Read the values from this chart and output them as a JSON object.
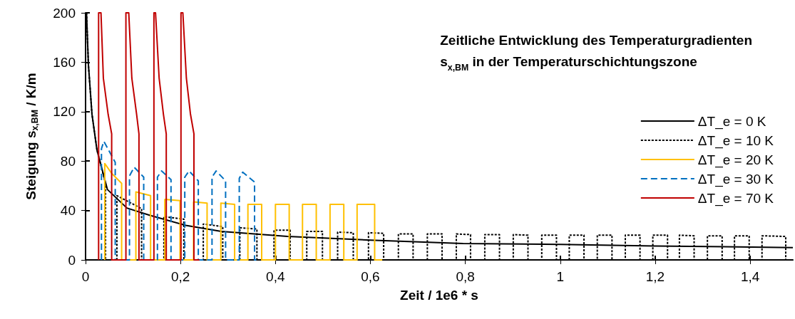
{
  "chart_data": {
    "type": "line",
    "title": "Zeitliche Entwicklung des Temperaturgradienten s$_{x,BM}$ in der Temperaturschichtungszone",
    "xlabel": "Zeit / 1e6 * s",
    "ylabel": "Steigung s$_{x,BM}$ / K/m",
    "xlim": [
      0,
      1.49
    ],
    "xticks": [
      0,
      {
        "value": 0.2,
        "label": "0,2"
      },
      {
        "value": 0.4,
        "label": "0,4"
      },
      {
        "value": 0.6,
        "label": "0,6"
      },
      {
        "value": 0.8,
        "label": "0,8"
      },
      1,
      {
        "value": 1.2,
        "label": "1,2"
      },
      {
        "value": 1.4,
        "label": "1,4"
      }
    ],
    "ylim": [
      0,
      200
    ],
    "yticks": [
      0,
      40,
      80,
      120,
      160,
      200
    ],
    "grid": false,
    "legend": "right",
    "marker": "none",
    "series": [
      {
        "name": "ΔT_e = 0 K",
        "color": "#000000",
        "line_style": "solid",
        "x": [
          0.002,
          0.006,
          0.0135,
          0.024,
          0.046,
          0.087,
          0.136,
          0.211,
          0.286,
          0.425,
          0.6,
          0.795,
          1.0,
          1.2,
          1.49
        ],
        "values": [
          200,
          158,
          118,
          89,
          57,
          42,
          36,
          28,
          23,
          19,
          16,
          13.3,
          12.5,
          11.3,
          10
        ]
      },
      {
        "name": "ΔT_e = 10 K",
        "color": "#000000",
        "line_style": "dotted",
        "x": [
          0.002,
          0.006,
          0.0135,
          0.024,
          0.042,
          0.042,
          0.066,
          0.066,
          0.118,
          0.118,
          0.165,
          0.165,
          0.207,
          0.207,
          0.248,
          0.248,
          0.289,
          0.289,
          0.325,
          0.325,
          0.361,
          0.361,
          0.397,
          0.397,
          0.431,
          0.431,
          0.466,
          0.466,
          0.499,
          0.499,
          0.531,
          0.531,
          0.564,
          0.564,
          0.596,
          0.596,
          0.628,
          0.628,
          0.659,
          0.659,
          0.69,
          0.69,
          0.72,
          0.72,
          0.751,
          0.751,
          0.781,
          0.781,
          0.811,
          0.811,
          0.841,
          0.841,
          0.872,
          0.872,
          0.901,
          0.901,
          0.932,
          0.932,
          0.961,
          0.961,
          0.992,
          0.992,
          1.019,
          1.019,
          1.05,
          1.05,
          1.078,
          1.078,
          1.109,
          1.109,
          1.137,
          1.137,
          1.168,
          1.168,
          1.195,
          1.195,
          1.226,
          1.226,
          1.251,
          1.251,
          1.282,
          1.282,
          1.31,
          1.31,
          1.341,
          1.341,
          1.367,
          1.367,
          1.398,
          1.398,
          1.425,
          1.425,
          1.475,
          1.475,
          1.49
        ],
        "values": [
          200,
          158,
          118,
          89,
          62,
          0,
          0,
          52,
          41.5,
          0,
          0,
          35,
          33,
          0,
          0,
          29,
          27,
          0,
          0,
          26,
          25,
          0,
          0,
          24,
          24,
          0,
          0,
          23,
          23,
          0,
          0,
          22.5,
          22,
          0,
          0,
          22,
          21.5,
          0,
          0,
          21,
          21,
          0,
          0,
          21,
          21,
          0,
          0,
          21,
          20.5,
          0,
          0,
          20.5,
          20.5,
          0,
          0,
          20.5,
          20,
          0,
          0,
          20,
          20,
          0,
          0,
          20,
          20,
          0,
          0,
          20,
          20,
          0,
          0,
          20,
          20,
          0,
          0,
          20,
          20,
          0,
          0,
          20,
          19.5,
          0,
          0,
          19.5,
          19.5,
          0,
          0,
          19.5,
          19.5,
          0,
          0,
          19.5,
          19,
          0,
          0
        ]
      },
      {
        "name": "ΔT_e = 20 K",
        "color": "#ffc000",
        "line_style": "solid",
        "x": [
          0.0404,
          0.0404,
          0.055,
          0.076,
          0.076,
          0.106,
          0.106,
          0.137,
          0.137,
          0.167,
          0.167,
          0.199,
          0.199,
          0.2275,
          0.2275,
          0.256,
          0.256,
          0.285,
          0.285,
          0.314,
          0.314,
          0.342,
          0.342,
          0.371,
          0.371,
          0.4,
          0.4,
          0.429,
          0.429,
          0.457,
          0.457,
          0.486,
          0.486,
          0.515,
          0.515,
          0.544,
          0.544,
          0.572,
          0.572,
          0.609,
          0.609,
          0.625
        ],
        "values": [
          0,
          78,
          70,
          62,
          0,
          0,
          55,
          52,
          0,
          0,
          49,
          48,
          0,
          0,
          47,
          46,
          0,
          0,
          46,
          45,
          0,
          0,
          45,
          45,
          0,
          0,
          45,
          45,
          0,
          0,
          45,
          45,
          0,
          0,
          45,
          45,
          0,
          0,
          45,
          45,
          0,
          0
        ]
      },
      {
        "name": "ΔT_e = 30 K",
        "color": "#0070c0",
        "line_style": "dashed",
        "x": [
          0.0335,
          0.0335,
          0.0385,
          0.0625,
          0.0625,
          0.0925,
          0.0925,
          0.1025,
          0.1225,
          0.1225,
          0.1514,
          0.1514,
          0.16,
          0.18,
          0.18,
          0.209,
          0.209,
          0.218,
          0.2375,
          0.2375,
          0.2664,
          0.2664,
          0.275,
          0.295,
          0.295,
          0.3238,
          0.3238,
          0.331,
          0.356,
          0.356,
          0.367
        ],
        "values": [
          0,
          90,
          96,
          79,
          0,
          0,
          68,
          75,
          67,
          0,
          0,
          67,
          72,
          65,
          0,
          0,
          67,
          72,
          64,
          0,
          0,
          67,
          72,
          64,
          0,
          0,
          66,
          71,
          63,
          0,
          0
        ]
      },
      {
        "name": "ΔT_e = 70 K",
        "color": "#c00000",
        "line_style": "solid",
        "x": [
          0.0275,
          0.0275,
          0.0325,
          0.0375,
          0.0475,
          0.055,
          0.055,
          0.085,
          0.085,
          0.091,
          0.0975,
          0.1075,
          0.1125,
          0.1125,
          0.144,
          0.144,
          0.1474,
          0.155,
          0.164,
          0.17,
          0.17,
          0.201,
          0.201,
          0.205,
          0.2124,
          0.221,
          0.2283,
          0.2283,
          0.24
        ],
        "values": [
          0,
          200,
          200,
          147,
          118,
          102,
          0,
          0,
          200,
          200,
          147,
          118,
          102,
          0,
          0,
          200,
          200,
          147,
          118,
          102,
          0,
          0,
          200,
          200,
          147,
          118,
          102,
          0,
          0
        ]
      }
    ]
  }
}
